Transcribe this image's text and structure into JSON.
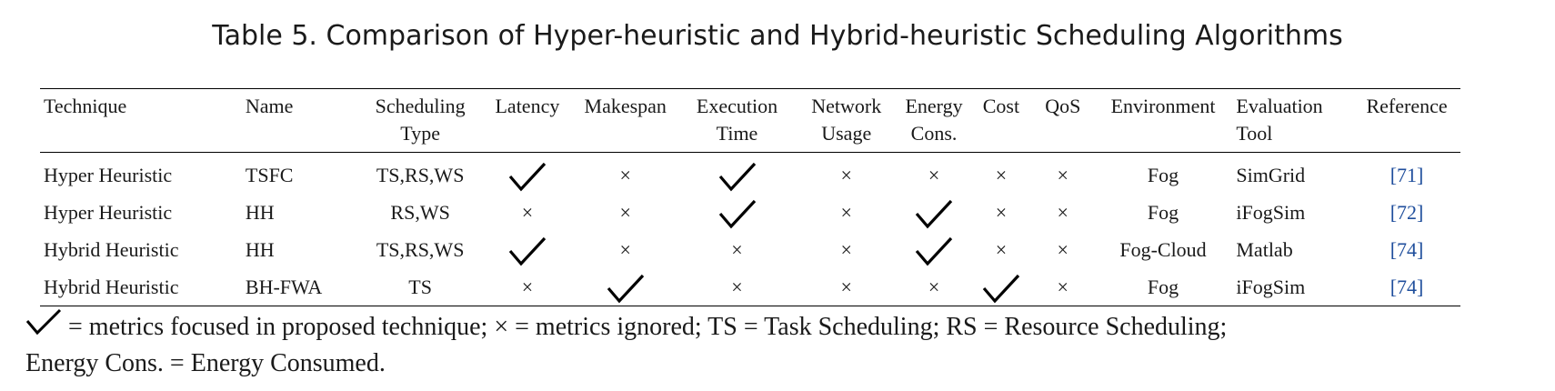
{
  "caption": "Table 5.  Comparison of Hyper-heuristic and Hybrid-heuristic Scheduling Algorithms",
  "headers": [
    [
      "Technique"
    ],
    [
      "Name"
    ],
    [
      "Scheduling",
      "Type"
    ],
    [
      "Latency"
    ],
    [
      "Makespan"
    ],
    [
      "Execution",
      "Time"
    ],
    [
      "Network",
      "Usage"
    ],
    [
      "Energy",
      "Cons."
    ],
    [
      "Cost"
    ],
    [
      "QoS"
    ],
    [
      "Environment"
    ],
    [
      "Evaluation",
      "Tool"
    ],
    [
      "Reference"
    ]
  ],
  "metric_columns": [
    "Latency",
    "Makespan",
    "Execution Time",
    "Network Usage",
    "Energy Cons.",
    "Cost",
    "QoS"
  ],
  "rows": [
    {
      "technique": "Hyper Heuristic",
      "name": "TSFC",
      "scheduling_type": "TS,RS,WS",
      "metrics": [
        "check",
        "cross",
        "check",
        "cross",
        "cross",
        "cross",
        "cross"
      ],
      "environment": "Fog",
      "tool": "SimGrid",
      "reference": "[71]"
    },
    {
      "technique": "Hyper Heuristic",
      "name": "HH",
      "scheduling_type": "RS,WS",
      "metrics": [
        "cross",
        "cross",
        "check",
        "cross",
        "check",
        "cross",
        "cross"
      ],
      "environment": "Fog",
      "tool": "iFogSim",
      "reference": "[72]"
    },
    {
      "technique": "Hybrid Heuristic",
      "name": "HH",
      "scheduling_type": "TS,RS,WS",
      "metrics": [
        "check",
        "cross",
        "cross",
        "cross",
        "check",
        "cross",
        "cross"
      ],
      "environment": "Fog-Cloud",
      "tool": "Matlab",
      "reference": "[74]"
    },
    {
      "technique": "Hybrid Heuristic",
      "name": "BH-FWA",
      "scheduling_type": "TS",
      "metrics": [
        "cross",
        "check",
        "cross",
        "cross",
        "cross",
        "check",
        "cross"
      ],
      "environment": "Fog",
      "tool": "iFogSim",
      "reference": "[74]"
    }
  ],
  "footnote": {
    "check_text": " = metrics focused in proposed technique; ",
    "cross_symbol": "×",
    "rest_line1": " = metrics ignored; TS = Task Scheduling; RS = Resource Scheduling;",
    "line2": "Energy Cons. = Energy Consumed."
  },
  "colors": {
    "reference_link": "#1f4e9c",
    "text": "#1a1a1a"
  }
}
